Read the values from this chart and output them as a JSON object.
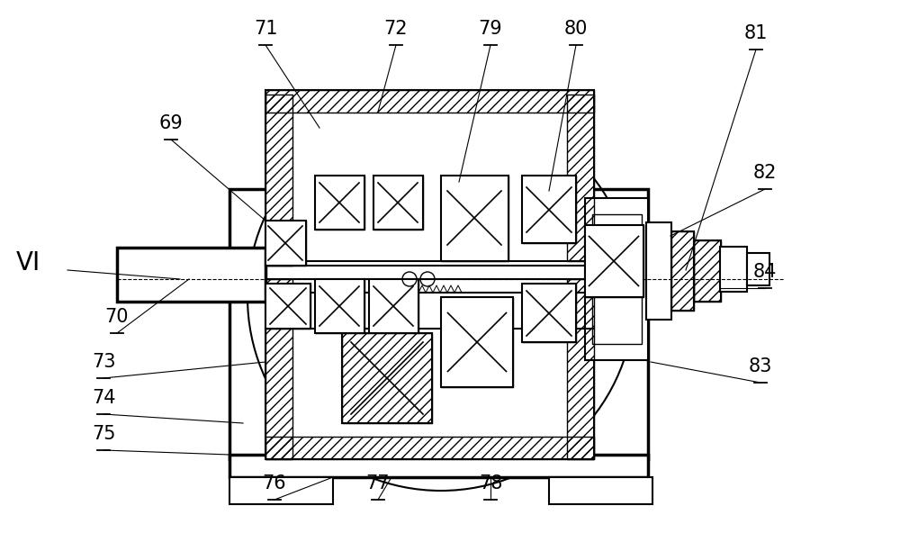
{
  "bg_color": "#ffffff",
  "line_color": "#000000",
  "fig_width": 10.0,
  "fig_height": 6.02,
  "label_fontsize": 15
}
